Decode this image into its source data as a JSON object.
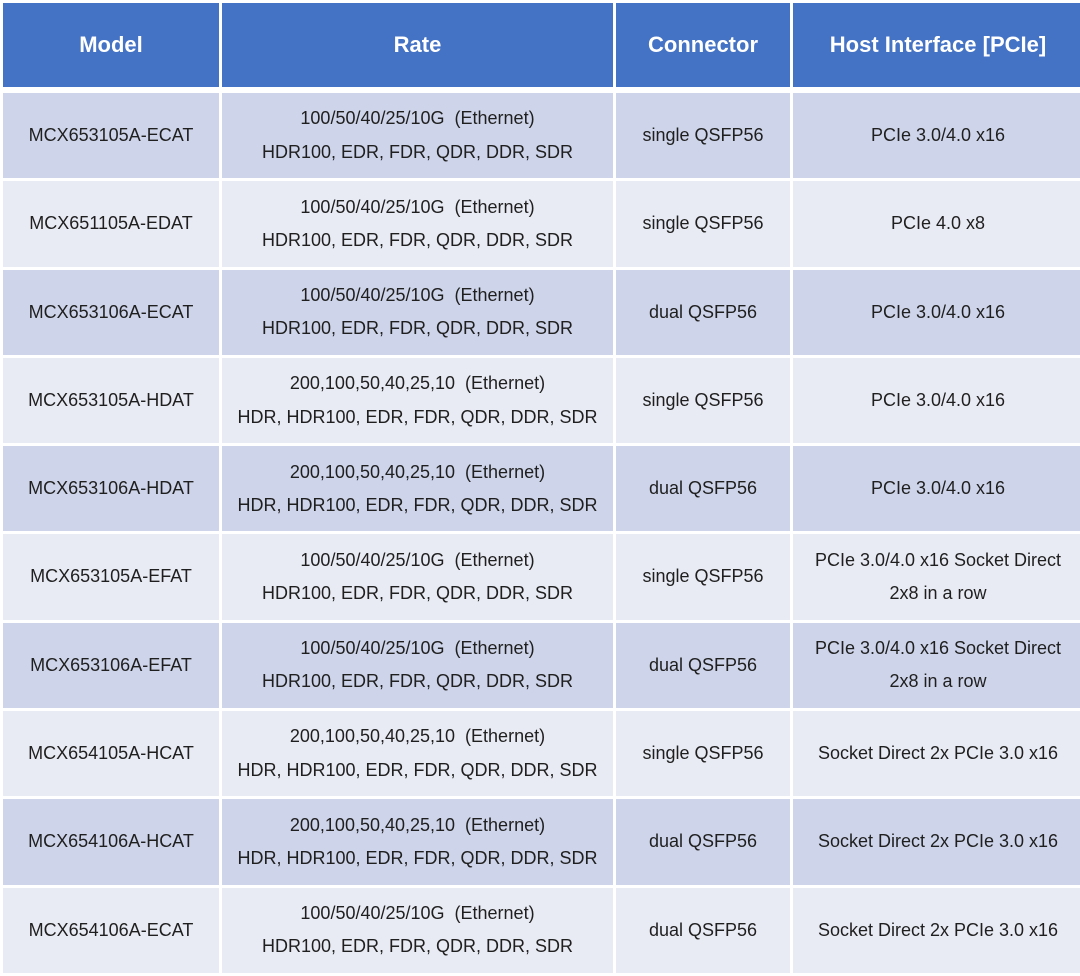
{
  "colors": {
    "header_bg": "#4472C4",
    "header_text": "#FFFFFF",
    "row_dark": "#CED4E9",
    "row_light": "#E9EBF4",
    "grid_line": "#FFFFFF",
    "body_text": "#1F1F1F"
  },
  "table": {
    "columns": [
      "Model",
      "Rate",
      "Connector",
      "Host Interface [PCIe]"
    ],
    "rows": [
      {
        "model": "MCX653105A-ECAT",
        "rate_line1": "100/50/40/25/10G  (Ethernet)",
        "rate_line2": "HDR100, EDR, FDR, QDR, DDR, SDR",
        "connector": "single QSFP56",
        "host_lines": [
          "PCIe 3.0/4.0 x16"
        ]
      },
      {
        "model": "MCX651105A-EDAT",
        "rate_line1": "100/50/40/25/10G  (Ethernet)",
        "rate_line2": "HDR100, EDR, FDR, QDR, DDR, SDR",
        "connector": "single QSFP56",
        "host_lines": [
          "PCIe 4.0 x8"
        ]
      },
      {
        "model": "MCX653106A-ECAT",
        "rate_line1": "100/50/40/25/10G  (Ethernet)",
        "rate_line2": "HDR100, EDR, FDR, QDR, DDR, SDR",
        "connector": "dual QSFP56",
        "host_lines": [
          "PCIe 3.0/4.0 x16"
        ]
      },
      {
        "model": "MCX653105A-HDAT",
        "rate_line1": "200,100,50,40,25,10  (Ethernet)",
        "rate_line2": "HDR, HDR100, EDR, FDR, QDR, DDR, SDR",
        "connector": "single QSFP56",
        "host_lines": [
          "PCIe 3.0/4.0 x16"
        ]
      },
      {
        "model": "MCX653106A-HDAT",
        "rate_line1": "200,100,50,40,25,10  (Ethernet)",
        "rate_line2": "HDR, HDR100, EDR, FDR, QDR, DDR, SDR",
        "connector": "dual QSFP56",
        "host_lines": [
          "PCIe 3.0/4.0 x16"
        ]
      },
      {
        "model": "MCX653105A-EFAT",
        "rate_line1": "100/50/40/25/10G  (Ethernet)",
        "rate_line2": "HDR100, EDR, FDR, QDR, DDR, SDR",
        "connector": "single QSFP56",
        "host_lines": [
          "PCIe 3.0/4.0 x16 Socket Direct",
          "2x8 in a row"
        ]
      },
      {
        "model": "MCX653106A-EFAT",
        "rate_line1": "100/50/40/25/10G  (Ethernet)",
        "rate_line2": "HDR100, EDR, FDR, QDR, DDR, SDR",
        "connector": "dual QSFP56",
        "host_lines": [
          "PCIe 3.0/4.0 x16 Socket Direct",
          "2x8 in a row"
        ]
      },
      {
        "model": "MCX654105A-HCAT",
        "rate_line1": "200,100,50,40,25,10  (Ethernet)",
        "rate_line2": "HDR, HDR100, EDR, FDR, QDR, DDR, SDR",
        "connector": "single QSFP56",
        "host_lines": [
          "Socket Direct 2x PCIe 3.0 x16"
        ]
      },
      {
        "model": "MCX654106A-HCAT",
        "rate_line1": "200,100,50,40,25,10  (Ethernet)",
        "rate_line2": "HDR, HDR100, EDR, FDR, QDR, DDR, SDR",
        "connector": "dual QSFP56",
        "host_lines": [
          "Socket Direct 2x PCIe 3.0 x16"
        ]
      },
      {
        "model": "MCX654106A-ECAT",
        "rate_line1": "100/50/40/25/10G  (Ethernet)",
        "rate_line2": "HDR100, EDR, FDR, QDR, DDR, SDR",
        "connector": "dual QSFP56",
        "host_lines": [
          "Socket Direct 2x PCIe 3.0 x16"
        ]
      }
    ]
  }
}
